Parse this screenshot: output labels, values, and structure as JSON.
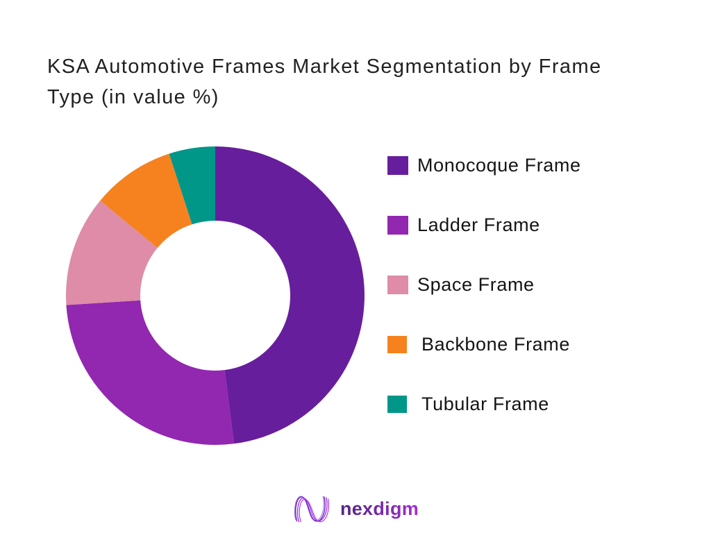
{
  "page": {
    "background": "#FFFFFF"
  },
  "title": {
    "full": "KSA Automotive Frames Market Segmentation by Frame Type (in value %)",
    "line1": "KSA Automotive Frames Market Segmentation by Frame",
    "line2": "Type (in value %)"
  },
  "chart_data": {
    "type": "pie",
    "subtype": "donut",
    "title": "KSA Automotive Frames Market Segmentation by Frame Type (in value %)",
    "unit": "% of market value",
    "categories": [
      "Monocoque Frame",
      "Ladder Frame",
      "Space Frame",
      "Backbone Frame",
      "Tubular Frame"
    ],
    "values": [
      48,
      26,
      12,
      9,
      5
    ],
    "colors": [
      "#671E9C",
      "#9227B0",
      "#DE8CA8",
      "#F5821F",
      "#009688"
    ],
    "start_angle_deg": 0,
    "direction": "clockwise",
    "inner_radius_ratio": 0.5,
    "legend_position": "right",
    "data_labels": false
  },
  "footer": {
    "logo_text": "nexdigm",
    "logo_icon": "nexdigm-wave-n-icon",
    "logo_gradient_start": "#53257E",
    "logo_gradient_end": "#A42ED0"
  }
}
